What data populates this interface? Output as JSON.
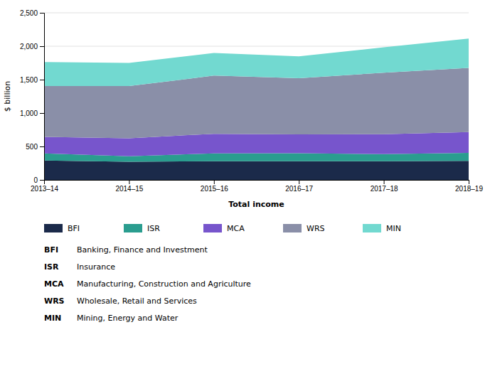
{
  "chart_data": {
    "type": "area",
    "stacked": true,
    "grid": true,
    "x_label": "Total income",
    "y_label": "$ billion",
    "categories": [
      "2013–14",
      "2014–15",
      "2015–16",
      "2016–17",
      "2017–18",
      "2018–19"
    ],
    "series": [
      {
        "name": "BFI",
        "color": "#1b2a4a",
        "description": "Banking, Finance and Investment",
        "values": [
          290,
          270,
          280,
          278,
          278,
          285
        ]
      },
      {
        "name": "ISR",
        "color": "#2a9d8f",
        "description": "Insurance",
        "values": [
          105,
          85,
          115,
          120,
          108,
          118
        ]
      },
      {
        "name": "MCA",
        "color": "#7755cc",
        "description": "Manufacturing, Construction and Agriculture",
        "values": [
          248,
          268,
          295,
          282,
          298,
          312
        ]
      },
      {
        "name": "WRS",
        "color": "#8a8fa8",
        "description": "Wholesale, Retail and Services",
        "values": [
          760,
          780,
          870,
          840,
          920,
          960
        ]
      },
      {
        "name": "MIN",
        "color": "#72d9d0",
        "description": "Mining, Energy and Water",
        "values": [
          360,
          348,
          340,
          328,
          380,
          440
        ]
      }
    ],
    "ylim": [
      0,
      2500
    ],
    "yticks": [
      0,
      500,
      {
        "value": 1000,
        "label": "1,000"
      },
      {
        "value": 1500,
        "label": "1,500"
      },
      {
        "value": 2000,
        "label": "2,000"
      },
      {
        "value": 2500,
        "label": "2,500"
      }
    ]
  }
}
